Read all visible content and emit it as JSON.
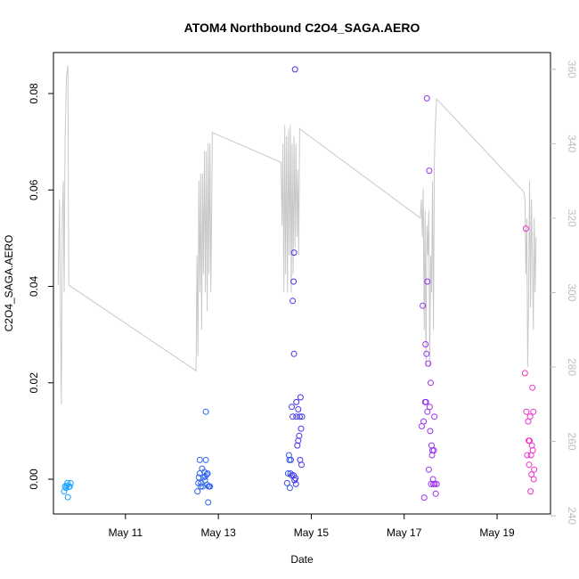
{
  "chart_data": {
    "type": "scatter",
    "title": "ATOM4 Northbound C2O4_SAGA.AERO",
    "xlabel": "Date",
    "ylabel": "C2O4_SAGA.AERO",
    "x_ticks": [
      {
        "label": "May 11",
        "value": 11.0
      },
      {
        "label": "May 13",
        "value": 13.0
      },
      {
        "label": "May 15",
        "value": 15.0
      },
      {
        "label": "May 17",
        "value": 17.0
      },
      {
        "label": "May 19",
        "value": 19.0
      }
    ],
    "y_ticks": [
      "0.00",
      "0.02",
      "0.04",
      "0.06",
      "0.08"
    ],
    "y_right_ticks": [
      "240",
      "260",
      "280",
      "300",
      "320",
      "340",
      "360"
    ],
    "xlim": [
      9.45,
      20.15
    ],
    "ylim": [
      -0.0072,
      0.0885
    ],
    "ylim_right": [
      240.5,
      364.5
    ],
    "grid": false,
    "points": [
      {
        "x": 9.68,
        "y": -0.0025,
        "color": "#1aa3ff"
      },
      {
        "x": 9.7,
        "y": -0.0015,
        "color": "#1aa3ff"
      },
      {
        "x": 9.72,
        "y": -0.0018,
        "color": "#1aa3ff"
      },
      {
        "x": 9.74,
        "y": -0.0013,
        "color": "#1aa3ff"
      },
      {
        "x": 9.75,
        "y": -0.0008,
        "color": "#1aa3ff"
      },
      {
        "x": 9.76,
        "y": -0.0037,
        "color": "#1aa3ff"
      },
      {
        "x": 9.78,
        "y": -0.0016,
        "color": "#1aa3ff"
      },
      {
        "x": 9.8,
        "y": -0.0015,
        "color": "#1aa3ff"
      },
      {
        "x": 9.82,
        "y": -0.0008,
        "color": "#1aa3ff"
      },
      {
        "x": 12.55,
        "y": -0.0025,
        "color": "#3366ee"
      },
      {
        "x": 12.57,
        "y": -0.0008,
        "color": "#3366ee"
      },
      {
        "x": 12.58,
        "y": 0.0004,
        "color": "#3366ee"
      },
      {
        "x": 12.6,
        "y": 0.0012,
        "color": "#3366ee"
      },
      {
        "x": 12.6,
        "y": 0.004,
        "color": "#3366ee"
      },
      {
        "x": 12.62,
        "y": -0.0015,
        "color": "#3366ee"
      },
      {
        "x": 12.63,
        "y": -0.0008,
        "color": "#3366ee"
      },
      {
        "x": 12.65,
        "y": 0.0022,
        "color": "#3366ee"
      },
      {
        "x": 12.66,
        "y": -0.0015,
        "color": "#3366ee"
      },
      {
        "x": 12.68,
        "y": 0.0004,
        "color": "#3366ee"
      },
      {
        "x": 12.7,
        "y": 0.0015,
        "color": "#3366ee"
      },
      {
        "x": 12.71,
        "y": -0.0002,
        "color": "#3366ee"
      },
      {
        "x": 12.72,
        "y": 0.0006,
        "color": "#3366ee"
      },
      {
        "x": 12.73,
        "y": 0.014,
        "color": "#3366ee"
      },
      {
        "x": 12.73,
        "y": 0.004,
        "color": "#3366ee"
      },
      {
        "x": 12.75,
        "y": 0.001,
        "color": "#3366ee"
      },
      {
        "x": 12.76,
        "y": -0.0012,
        "color": "#3366ee"
      },
      {
        "x": 12.77,
        "y": 0.0012,
        "color": "#3366ee"
      },
      {
        "x": 12.78,
        "y": -0.0048,
        "color": "#3366ee"
      },
      {
        "x": 12.79,
        "y": -0.0015,
        "color": "#3366ee"
      },
      {
        "x": 12.8,
        "y": -0.0015,
        "color": "#3366ee"
      },
      {
        "x": 12.82,
        "y": -0.0015,
        "color": "#3366ee"
      },
      {
        "x": 14.48,
        "y": -0.0008,
        "color": "#3355ee"
      },
      {
        "x": 14.5,
        "y": 0.0012,
        "color": "#3355ee"
      },
      {
        "x": 14.52,
        "y": 0.005,
        "color": "#3355ee"
      },
      {
        "x": 14.53,
        "y": 0.004,
        "color": "#3355ee"
      },
      {
        "x": 14.54,
        "y": -0.0018,
        "color": "#3355ee"
      },
      {
        "x": 14.55,
        "y": 0.0012,
        "color": "#3355ee"
      },
      {
        "x": 14.56,
        "y": 0.004,
        "color": "#3355ee"
      },
      {
        "x": 14.58,
        "y": 0.0008,
        "color": "#4433ee"
      },
      {
        "x": 14.58,
        "y": 0.015,
        "color": "#4433ee"
      },
      {
        "x": 14.6,
        "y": 0.013,
        "color": "#4433ee"
      },
      {
        "x": 14.6,
        "y": 0.037,
        "color": "#4433ee"
      },
      {
        "x": 14.62,
        "y": 0.041,
        "color": "#4433ee"
      },
      {
        "x": 14.62,
        "y": 0.0008,
        "color": "#4433ee"
      },
      {
        "x": 14.63,
        "y": 0.047,
        "color": "#4433ee"
      },
      {
        "x": 14.63,
        "y": 0.026,
        "color": "#4433ee"
      },
      {
        "x": 14.64,
        "y": -0.0002,
        "color": "#4433ee"
      },
      {
        "x": 14.65,
        "y": 0.085,
        "color": "#4433ee"
      },
      {
        "x": 14.66,
        "y": 0.0002,
        "color": "#4433ee"
      },
      {
        "x": 14.67,
        "y": -0.001,
        "color": "#4433ee"
      },
      {
        "x": 14.68,
        "y": 0.016,
        "color": "#4433ee"
      },
      {
        "x": 14.68,
        "y": 0.013,
        "color": "#4433ee"
      },
      {
        "x": 14.7,
        "y": 0.007,
        "color": "#4433ee"
      },
      {
        "x": 14.72,
        "y": 0.008,
        "color": "#4433ee"
      },
      {
        "x": 14.72,
        "y": 0.0145,
        "color": "#4433ee"
      },
      {
        "x": 14.74,
        "y": 0.009,
        "color": "#4433ee"
      },
      {
        "x": 14.75,
        "y": 0.013,
        "color": "#4433ee"
      },
      {
        "x": 14.76,
        "y": 0.004,
        "color": "#4433ee"
      },
      {
        "x": 14.77,
        "y": 0.017,
        "color": "#4433ee"
      },
      {
        "x": 14.78,
        "y": 0.0105,
        "color": "#4433ee"
      },
      {
        "x": 14.79,
        "y": 0.003,
        "color": "#4433ee"
      },
      {
        "x": 14.8,
        "y": 0.013,
        "color": "#4433ee"
      },
      {
        "x": 17.38,
        "y": 0.011,
        "color": "#9933ee"
      },
      {
        "x": 17.4,
        "y": 0.036,
        "color": "#9933ee"
      },
      {
        "x": 17.42,
        "y": 0.012,
        "color": "#9933ee"
      },
      {
        "x": 17.43,
        "y": -0.0038,
        "color": "#9933ee"
      },
      {
        "x": 17.45,
        "y": 0.016,
        "color": "#9933ee"
      },
      {
        "x": 17.46,
        "y": 0.028,
        "color": "#9933ee"
      },
      {
        "x": 17.47,
        "y": 0.016,
        "color": "#9933ee"
      },
      {
        "x": 17.48,
        "y": 0.026,
        "color": "#9933ee"
      },
      {
        "x": 17.49,
        "y": 0.079,
        "color": "#9933ee"
      },
      {
        "x": 17.5,
        "y": 0.041,
        "color": "#9933ee"
      },
      {
        "x": 17.5,
        "y": 0.014,
        "color": "#9933ee"
      },
      {
        "x": 17.52,
        "y": 0.024,
        "color": "#9933ee"
      },
      {
        "x": 17.53,
        "y": 0.002,
        "color": "#9933ee"
      },
      {
        "x": 17.54,
        "y": 0.064,
        "color": "#9933ee"
      },
      {
        "x": 17.55,
        "y": 0.015,
        "color": "#9933ee"
      },
      {
        "x": 17.56,
        "y": 0.01,
        "color": "#9933ee"
      },
      {
        "x": 17.57,
        "y": 0.02,
        "color": "#9933ee"
      },
      {
        "x": 17.58,
        "y": -0.001,
        "color": "#9933ee"
      },
      {
        "x": 17.59,
        "y": 0.007,
        "color": "#9933ee"
      },
      {
        "x": 17.6,
        "y": 0.005,
        "color": "#9933ee"
      },
      {
        "x": 17.61,
        "y": 0.006,
        "color": "#9933ee"
      },
      {
        "x": 17.62,
        "y": 0.0,
        "color": "#9933ee"
      },
      {
        "x": 17.63,
        "y": -0.001,
        "color": "#9933ee"
      },
      {
        "x": 17.64,
        "y": 0.006,
        "color": "#9933ee"
      },
      {
        "x": 17.65,
        "y": 0.013,
        "color": "#9933ee"
      },
      {
        "x": 17.66,
        "y": -0.001,
        "color": "#9933ee"
      },
      {
        "x": 17.68,
        "y": -0.003,
        "color": "#9933ee"
      },
      {
        "x": 17.7,
        "y": -0.001,
        "color": "#9933ee"
      },
      {
        "x": 19.6,
        "y": 0.022,
        "color": "#ee33cc"
      },
      {
        "x": 19.62,
        "y": 0.052,
        "color": "#ee33cc"
      },
      {
        "x": 19.63,
        "y": 0.014,
        "color": "#ee33cc"
      },
      {
        "x": 19.65,
        "y": 0.005,
        "color": "#ee33cc"
      },
      {
        "x": 19.67,
        "y": 0.012,
        "color": "#ee33cc"
      },
      {
        "x": 19.68,
        "y": 0.008,
        "color": "#ee33cc"
      },
      {
        "x": 19.69,
        "y": 0.003,
        "color": "#ee33cc"
      },
      {
        "x": 19.7,
        "y": 0.008,
        "color": "#ee33cc"
      },
      {
        "x": 19.71,
        "y": 0.013,
        "color": "#ee33cc"
      },
      {
        "x": 19.72,
        "y": -0.0025,
        "color": "#ee33cc"
      },
      {
        "x": 19.73,
        "y": 0.005,
        "color": "#ee33cc"
      },
      {
        "x": 19.74,
        "y": 0.001,
        "color": "#ee33cc"
      },
      {
        "x": 19.75,
        "y": 0.007,
        "color": "#ee33cc"
      },
      {
        "x": 19.76,
        "y": 0.019,
        "color": "#ee33cc"
      },
      {
        "x": 19.77,
        "y": 0.006,
        "color": "#ee33cc"
      },
      {
        "x": 19.78,
        "y": 0.014,
        "color": "#ee33cc"
      },
      {
        "x": 19.79,
        "y": 0.0,
        "color": "#ee33cc"
      },
      {
        "x": 19.8,
        "y": 0.002,
        "color": "#ee33cc"
      }
    ],
    "secondary_line": {
      "color": "#c8c8c8",
      "axis": "right",
      "points": [
        [
          9.55,
          302
        ],
        [
          9.58,
          325
        ],
        [
          9.6,
          298
        ],
        [
          9.62,
          270
        ],
        [
          9.64,
          320
        ],
        [
          9.66,
          330
        ],
        [
          9.68,
          300
        ],
        [
          9.7,
          340
        ],
        [
          9.73,
          358
        ],
        [
          9.76,
          361
        ],
        [
          9.78,
          302
        ],
        [
          12.52,
          279
        ],
        [
          12.54,
          310
        ],
        [
          12.56,
          283
        ],
        [
          12.58,
          330
        ],
        [
          12.6,
          300
        ],
        [
          12.62,
          332
        ],
        [
          12.64,
          290
        ],
        [
          12.66,
          332
        ],
        [
          12.68,
          305
        ],
        [
          12.7,
          338
        ],
        [
          12.72,
          300
        ],
        [
          12.74,
          338
        ],
        [
          12.76,
          295
        ],
        [
          12.78,
          340
        ],
        [
          12.8,
          305
        ],
        [
          12.82,
          340
        ],
        [
          12.84,
          300
        ],
        [
          12.87,
          343
        ],
        [
          14.35,
          335
        ],
        [
          14.37,
          318
        ],
        [
          14.39,
          340
        ],
        [
          14.41,
          300
        ],
        [
          14.43,
          345
        ],
        [
          14.45,
          305
        ],
        [
          14.47,
          342
        ],
        [
          14.49,
          300
        ],
        [
          14.51,
          344
        ],
        [
          14.53,
          310
        ],
        [
          14.55,
          345
        ],
        [
          14.57,
          300
        ],
        [
          14.59,
          340
        ],
        [
          14.61,
          305
        ],
        [
          14.63,
          342
        ],
        [
          14.65,
          312
        ],
        [
          14.67,
          340
        ],
        [
          14.69,
          315
        ],
        [
          14.71,
          333
        ],
        [
          14.73,
          310
        ],
        [
          14.75,
          344
        ],
        [
          17.35,
          320
        ],
        [
          17.37,
          325
        ],
        [
          17.39,
          315
        ],
        [
          17.41,
          328
        ],
        [
          17.43,
          290
        ],
        [
          17.45,
          322
        ],
        [
          17.47,
          280
        ],
        [
          17.49,
          318
        ],
        [
          17.51,
          310
        ],
        [
          17.53,
          322
        ],
        [
          17.55,
          280
        ],
        [
          17.57,
          310
        ],
        [
          17.59,
          300
        ],
        [
          17.61,
          330
        ],
        [
          17.63,
          290
        ],
        [
          17.65,
          335
        ],
        [
          17.67,
          345
        ],
        [
          17.7,
          352
        ],
        [
          19.58,
          327
        ],
        [
          19.6,
          325
        ],
        [
          19.62,
          305
        ],
        [
          19.64,
          320
        ],
        [
          19.66,
          280
        ],
        [
          19.68,
          300
        ],
        [
          19.7,
          330
        ],
        [
          19.72,
          296
        ],
        [
          19.74,
          325
        ],
        [
          19.76,
          310
        ],
        [
          19.78,
          290
        ],
        [
          19.8,
          320
        ],
        [
          19.82,
          300
        ],
        [
          19.84,
          315
        ]
      ]
    }
  }
}
